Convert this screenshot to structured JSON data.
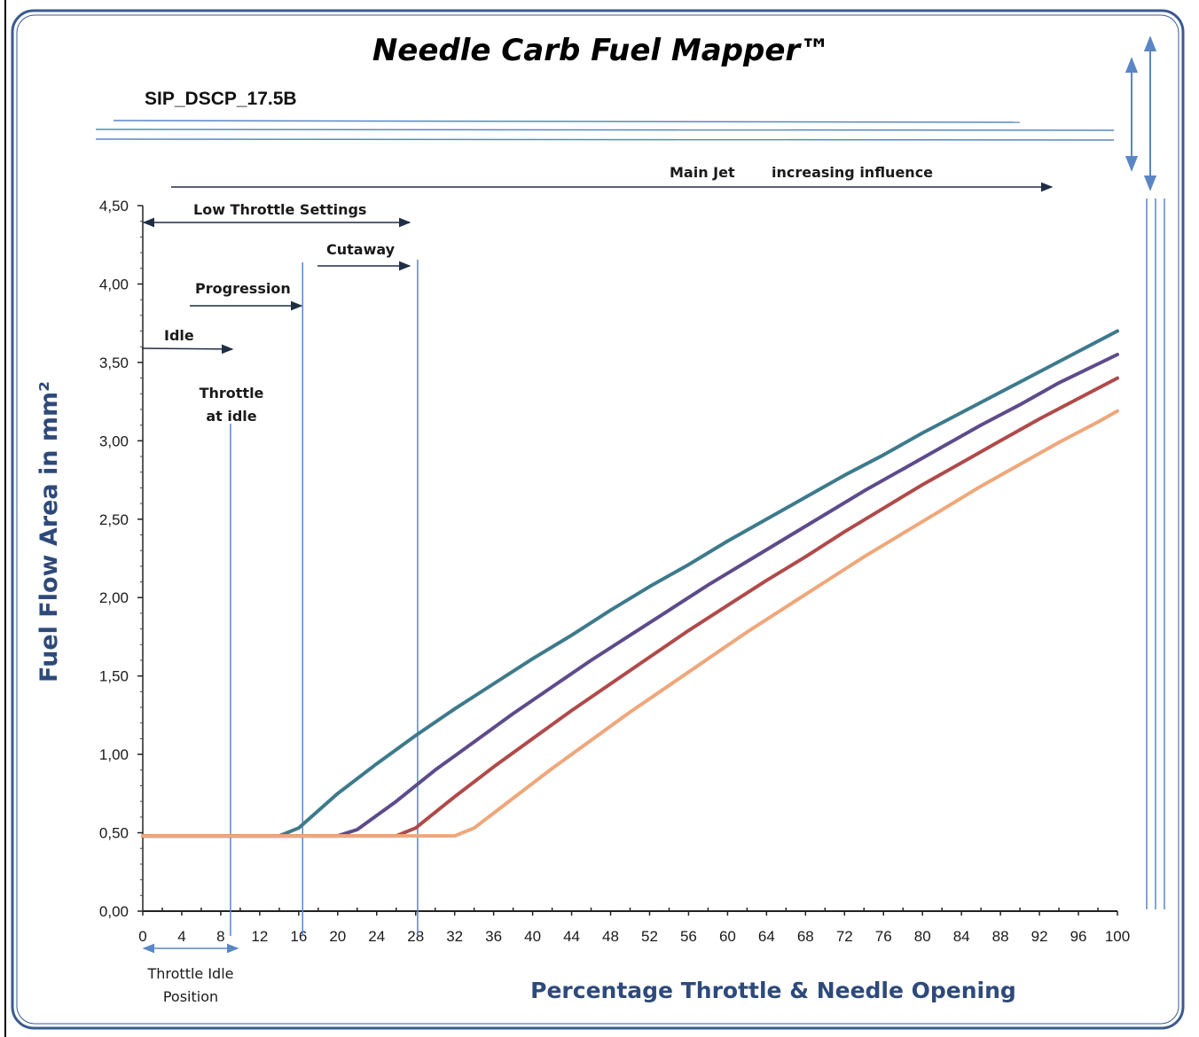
{
  "header": {
    "title": "Needle Carb Fuel Mapper™",
    "subtitle": "SIP_DSCP_17.5B"
  },
  "annotations": {
    "main_jet": "Main Jet",
    "increasing_influence": "increasing influence",
    "low_throttle": "Low Throttle Settings",
    "cutaway": "Cutaway",
    "progression": "Progression",
    "idle": "Idle",
    "throttle_idle_line1": "Throttle",
    "throttle_idle_line2": "at idle",
    "throttle_idle_pos_line1": "Throttle Idle",
    "throttle_idle_pos_line2": "Position"
  },
  "colors": {
    "frame": "#3b5a8f",
    "guide_line": "#5b86c6",
    "axis_label": "#2e4a7a"
  },
  "chart_data": {
    "type": "line",
    "xlabel": "Percentage Throttle & Needle Opening",
    "ylabel": "Fuel Flow Area in mm²",
    "xlim": [
      0,
      100
    ],
    "ylim": [
      0,
      4.5
    ],
    "x_ticks": [
      "0",
      "4",
      "8",
      "12",
      "16",
      "20",
      "24",
      "28",
      "32",
      "36",
      "40",
      "44",
      "48",
      "52",
      "56",
      "60",
      "64",
      "68",
      "72",
      "76",
      "80",
      "84",
      "88",
      "92",
      "96",
      "100"
    ],
    "y_ticks": [
      "0,00",
      "0,50",
      "1,00",
      "1,50",
      "2,00",
      "2,50",
      "3,00",
      "3,50",
      "4,00",
      "4,50"
    ],
    "vertical_markers": [
      9,
      16.4,
      28.2
    ],
    "series": [
      {
        "color": "#3d7a8c",
        "points": [
          [
            0,
            0.48
          ],
          [
            14,
            0.48
          ],
          [
            16,
            0.53
          ],
          [
            20,
            0.75
          ],
          [
            24,
            0.94
          ],
          [
            28,
            1.12
          ],
          [
            32,
            1.29
          ],
          [
            36,
            1.45
          ],
          [
            40,
            1.61
          ],
          [
            44,
            1.76
          ],
          [
            48,
            1.92
          ],
          [
            52,
            2.07
          ],
          [
            56,
            2.21
          ],
          [
            60,
            2.36
          ],
          [
            64,
            2.5
          ],
          [
            68,
            2.64
          ],
          [
            72,
            2.78
          ],
          [
            76,
            2.91
          ],
          [
            80,
            3.05
          ],
          [
            84,
            3.18
          ],
          [
            88,
            3.31
          ],
          [
            92,
            3.44
          ],
          [
            96,
            3.57
          ],
          [
            100,
            3.7
          ]
        ]
      },
      {
        "color": "#5e4b8a",
        "points": [
          [
            0,
            0.48
          ],
          [
            20,
            0.48
          ],
          [
            22,
            0.52
          ],
          [
            26,
            0.7
          ],
          [
            30,
            0.9
          ],
          [
            34,
            1.08
          ],
          [
            38,
            1.26
          ],
          [
            42,
            1.43
          ],
          [
            46,
            1.6
          ],
          [
            50,
            1.76
          ],
          [
            54,
            1.92
          ],
          [
            58,
            2.08
          ],
          [
            62,
            2.23
          ],
          [
            66,
            2.38
          ],
          [
            70,
            2.53
          ],
          [
            74,
            2.68
          ],
          [
            78,
            2.82
          ],
          [
            82,
            2.96
          ],
          [
            86,
            3.1
          ],
          [
            90,
            3.23
          ],
          [
            94,
            3.37
          ],
          [
            100,
            3.55
          ]
        ]
      },
      {
        "color": "#b04a4a",
        "points": [
          [
            0,
            0.48
          ],
          [
            26,
            0.48
          ],
          [
            28,
            0.53
          ],
          [
            32,
            0.73
          ],
          [
            36,
            0.92
          ],
          [
            40,
            1.1
          ],
          [
            44,
            1.28
          ],
          [
            48,
            1.45
          ],
          [
            52,
            1.62
          ],
          [
            56,
            1.79
          ],
          [
            60,
            1.95
          ],
          [
            64,
            2.11
          ],
          [
            68,
            2.26
          ],
          [
            72,
            2.42
          ],
          [
            76,
            2.57
          ],
          [
            80,
            2.72
          ],
          [
            84,
            2.86
          ],
          [
            88,
            3.0
          ],
          [
            92,
            3.14
          ],
          [
            96,
            3.27
          ],
          [
            100,
            3.4
          ]
        ]
      },
      {
        "color": "#efa77a",
        "points": [
          [
            0,
            0.48
          ],
          [
            32,
            0.48
          ],
          [
            34,
            0.53
          ],
          [
            38,
            0.72
          ],
          [
            42,
            0.91
          ],
          [
            46,
            1.09
          ],
          [
            50,
            1.27
          ],
          [
            54,
            1.44
          ],
          [
            58,
            1.61
          ],
          [
            62,
            1.78
          ],
          [
            66,
            1.94
          ],
          [
            70,
            2.1
          ],
          [
            74,
            2.26
          ],
          [
            78,
            2.41
          ],
          [
            82,
            2.56
          ],
          [
            86,
            2.71
          ],
          [
            90,
            2.85
          ],
          [
            94,
            2.99
          ],
          [
            98,
            3.12
          ],
          [
            100,
            3.19
          ]
        ]
      }
    ]
  }
}
